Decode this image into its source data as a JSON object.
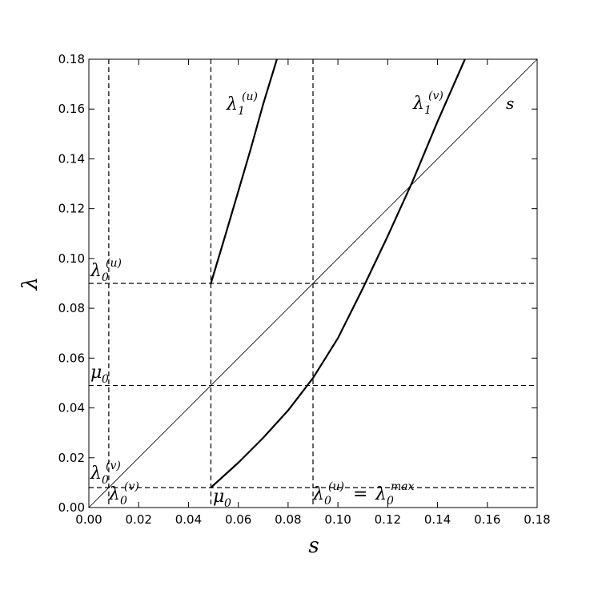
{
  "chart_data": {
    "type": "line",
    "xlabel": "s",
    "ylabel": "λ",
    "xlim": [
      0.0,
      0.18
    ],
    "ylim": [
      0.0,
      0.18
    ],
    "x_ticks": [
      "0.00",
      "0.02",
      "0.04",
      "0.06",
      "0.08",
      "0.10",
      "0.12",
      "0.14",
      "0.16",
      "0.18"
    ],
    "y_ticks": [
      "0.00",
      "0.02",
      "0.04",
      "0.06",
      "0.08",
      "0.10",
      "0.12",
      "0.14",
      "0.16",
      "0.18"
    ],
    "grid": false,
    "series": [
      {
        "name": "s",
        "style": "thin",
        "x": [
          0.0,
          0.18
        ],
        "y": [
          0.0,
          0.18
        ]
      },
      {
        "name": "λ1(u)",
        "style": "thick",
        "x": [
          0.049,
          0.055,
          0.06,
          0.065,
          0.07,
          0.0755
        ],
        "y": [
          0.09,
          0.11,
          0.127,
          0.144,
          0.162,
          0.18
        ]
      },
      {
        "name": "λ1(v)",
        "style": "thick",
        "x": [
          0.049,
          0.06,
          0.07,
          0.08,
          0.09,
          0.1,
          0.11,
          0.12,
          0.13,
          0.14,
          0.151
        ],
        "y": [
          0.008,
          0.018,
          0.028,
          0.039,
          0.052,
          0.068,
          0.088,
          0.109,
          0.131,
          0.155,
          0.18
        ]
      }
    ],
    "hlines": [
      {
        "name": "λ0(u)",
        "y": 0.09
      },
      {
        "name": "μ0",
        "y": 0.049
      },
      {
        "name": "λ0(v)",
        "y": 0.008
      }
    ],
    "vlines": [
      {
        "name": "λ0(v)",
        "x": 0.008
      },
      {
        "name": "μ0",
        "x": 0.049
      },
      {
        "name": "λ0(u) = λ0 max",
        "x": 0.09
      }
    ],
    "annotations": {
      "s_curve": "s",
      "l1u": {
        "base": "λ",
        "sub": "1",
        "sup": "(u)"
      },
      "l1v": {
        "base": "λ",
        "sub": "1",
        "sup": "(v)"
      },
      "l0u_left": {
        "base": "λ",
        "sub": "0",
        "sup": "(u)"
      },
      "mu0_left": {
        "base": "μ",
        "sub": "0"
      },
      "l0v_left": {
        "base": "λ",
        "sub": "0",
        "sup": "(v)"
      },
      "l0v_bottom": {
        "base": "λ",
        "sub": "0",
        "sup": "(v)"
      },
      "mu0_bottom": {
        "base": "μ",
        "sub": "0"
      },
      "l0u_bottom": {
        "base": "λ",
        "sub": "0",
        "sup": "(u)",
        "eq": "=",
        "base2": "λ",
        "sub2": "0",
        "sup2": "max"
      }
    }
  }
}
